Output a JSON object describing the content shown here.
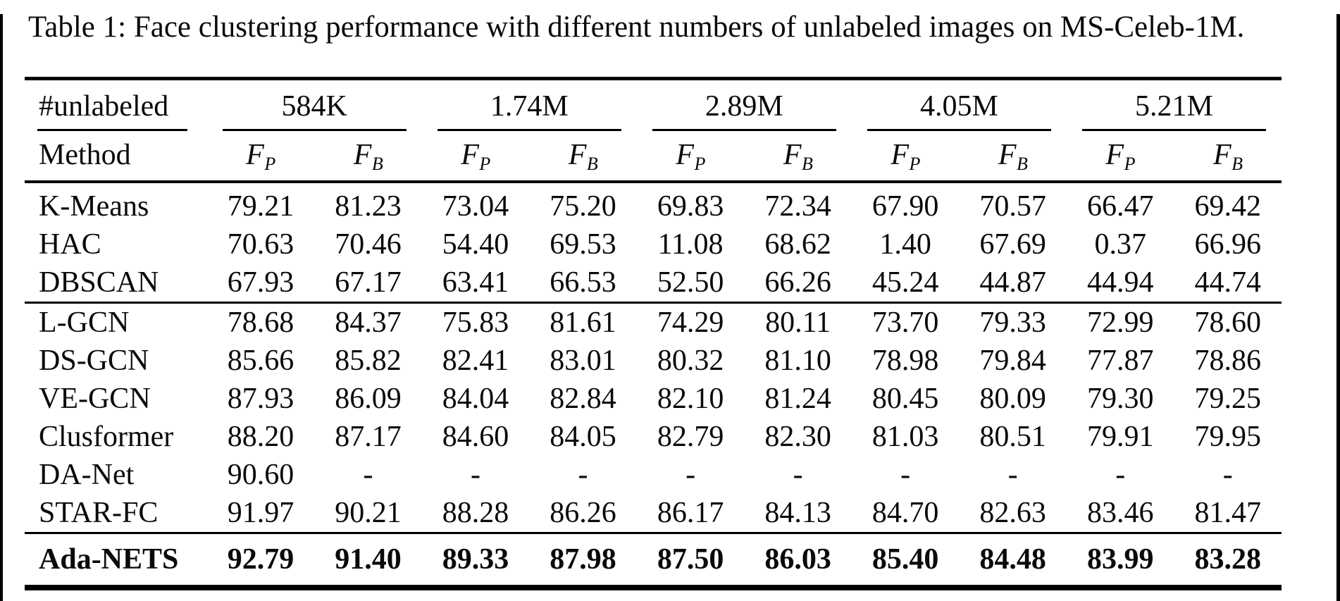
{
  "title": "Table 1: Face clustering performance with different numbers of unlabeled images on MS-Celeb-1M.",
  "table": {
    "corner_label": "#unlabeled",
    "method_label": "Method",
    "groups": [
      "584K",
      "1.74M",
      "2.89M",
      "4.05M",
      "5.21M"
    ],
    "metric_base": "F",
    "metric_subs": [
      "P",
      "B"
    ],
    "row_groups": [
      {
        "rows": [
          {
            "method": "K-Means",
            "values": [
              "79.21",
              "81.23",
              "73.04",
              "75.20",
              "69.83",
              "72.34",
              "67.90",
              "70.57",
              "66.47",
              "69.42"
            ]
          },
          {
            "method": "HAC",
            "values": [
              "70.63",
              "70.46",
              "54.40",
              "69.53",
              "11.08",
              "68.62",
              "1.40",
              "67.69",
              "0.37",
              "66.96"
            ]
          },
          {
            "method": "DBSCAN",
            "values": [
              "67.93",
              "67.17",
              "63.41",
              "66.53",
              "52.50",
              "66.26",
              "45.24",
              "44.87",
              "44.94",
              "44.74"
            ]
          }
        ]
      },
      {
        "rows": [
          {
            "method": "L-GCN",
            "values": [
              "78.68",
              "84.37",
              "75.83",
              "81.61",
              "74.29",
              "80.11",
              "73.70",
              "79.33",
              "72.99",
              "78.60"
            ]
          },
          {
            "method": "DS-GCN",
            "values": [
              "85.66",
              "85.82",
              "82.41",
              "83.01",
              "80.32",
              "81.10",
              "78.98",
              "79.84",
              "77.87",
              "78.86"
            ]
          },
          {
            "method": "VE-GCN",
            "values": [
              "87.93",
              "86.09",
              "84.04",
              "82.84",
              "82.10",
              "81.24",
              "80.45",
              "80.09",
              "79.30",
              "79.25"
            ]
          },
          {
            "method": "Clusformer",
            "values": [
              "88.20",
              "87.17",
              "84.60",
              "84.05",
              "82.79",
              "82.30",
              "81.03",
              "80.51",
              "79.91",
              "79.95"
            ]
          },
          {
            "method": "DA-Net",
            "values": [
              "90.60",
              "-",
              "-",
              "-",
              "-",
              "-",
              "-",
              "-",
              "-",
              "-"
            ]
          },
          {
            "method": "STAR-FC",
            "values": [
              "91.97",
              "90.21",
              "88.28",
              "86.26",
              "86.17",
              "84.13",
              "84.70",
              "82.63",
              "83.46",
              "81.47"
            ]
          }
        ]
      },
      {
        "rows": [
          {
            "method": "Ada-NETS",
            "bold": true,
            "values": [
              "92.79",
              "91.40",
              "89.33",
              "87.98",
              "87.50",
              "86.03",
              "85.40",
              "84.48",
              "83.99",
              "83.28"
            ]
          }
        ]
      }
    ]
  }
}
